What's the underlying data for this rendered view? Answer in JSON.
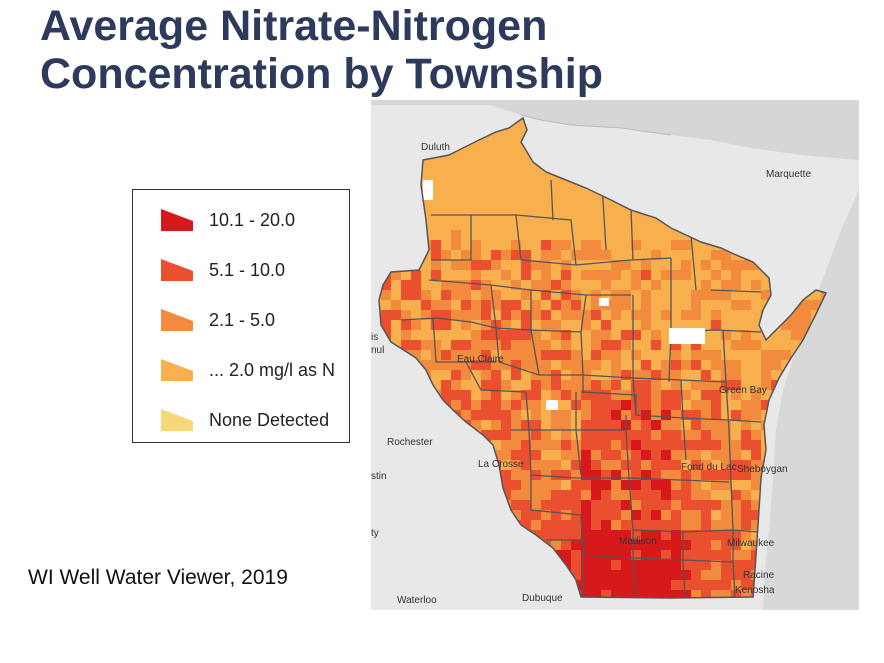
{
  "title_line1": "Average Nitrate-Nitrogen",
  "title_line2": "Concentration by Township",
  "source": "WI Well Water Viewer, 2019",
  "legend": [
    {
      "label": "10.1 - 20.0",
      "color": "#d7191c"
    },
    {
      "label": "5.1 - 10.0",
      "color": "#ea4f2f"
    },
    {
      "label": "2.1 - 5.0",
      "color": "#f38b3f"
    },
    {
      "label": "... 2.0 mg/l as N",
      "color": "#f7b04d"
    },
    {
      "label": "None Detected",
      "color": "#f8d77a"
    }
  ],
  "cities": {
    "duluth": "Duluth",
    "marquette": "Marquette",
    "eau_claire": "Eau Claire",
    "green_bay": "Green Bay",
    "rochester": "Rochester",
    "la_crosse": "La Crosse",
    "fond_du_lac": "Fond du Lac",
    "sheboygan": "Sheboygan",
    "madison": "Madison",
    "milwaukee": "Milwaukee",
    "racine": "Racine",
    "kenosha": "Kenosha",
    "waterloo": "Waterloo",
    "dubuque": "Dubuque",
    "partial_is": "is",
    "partial_nul": "nul",
    "partial_stin": "stin",
    "partial_ty": "ty"
  }
}
